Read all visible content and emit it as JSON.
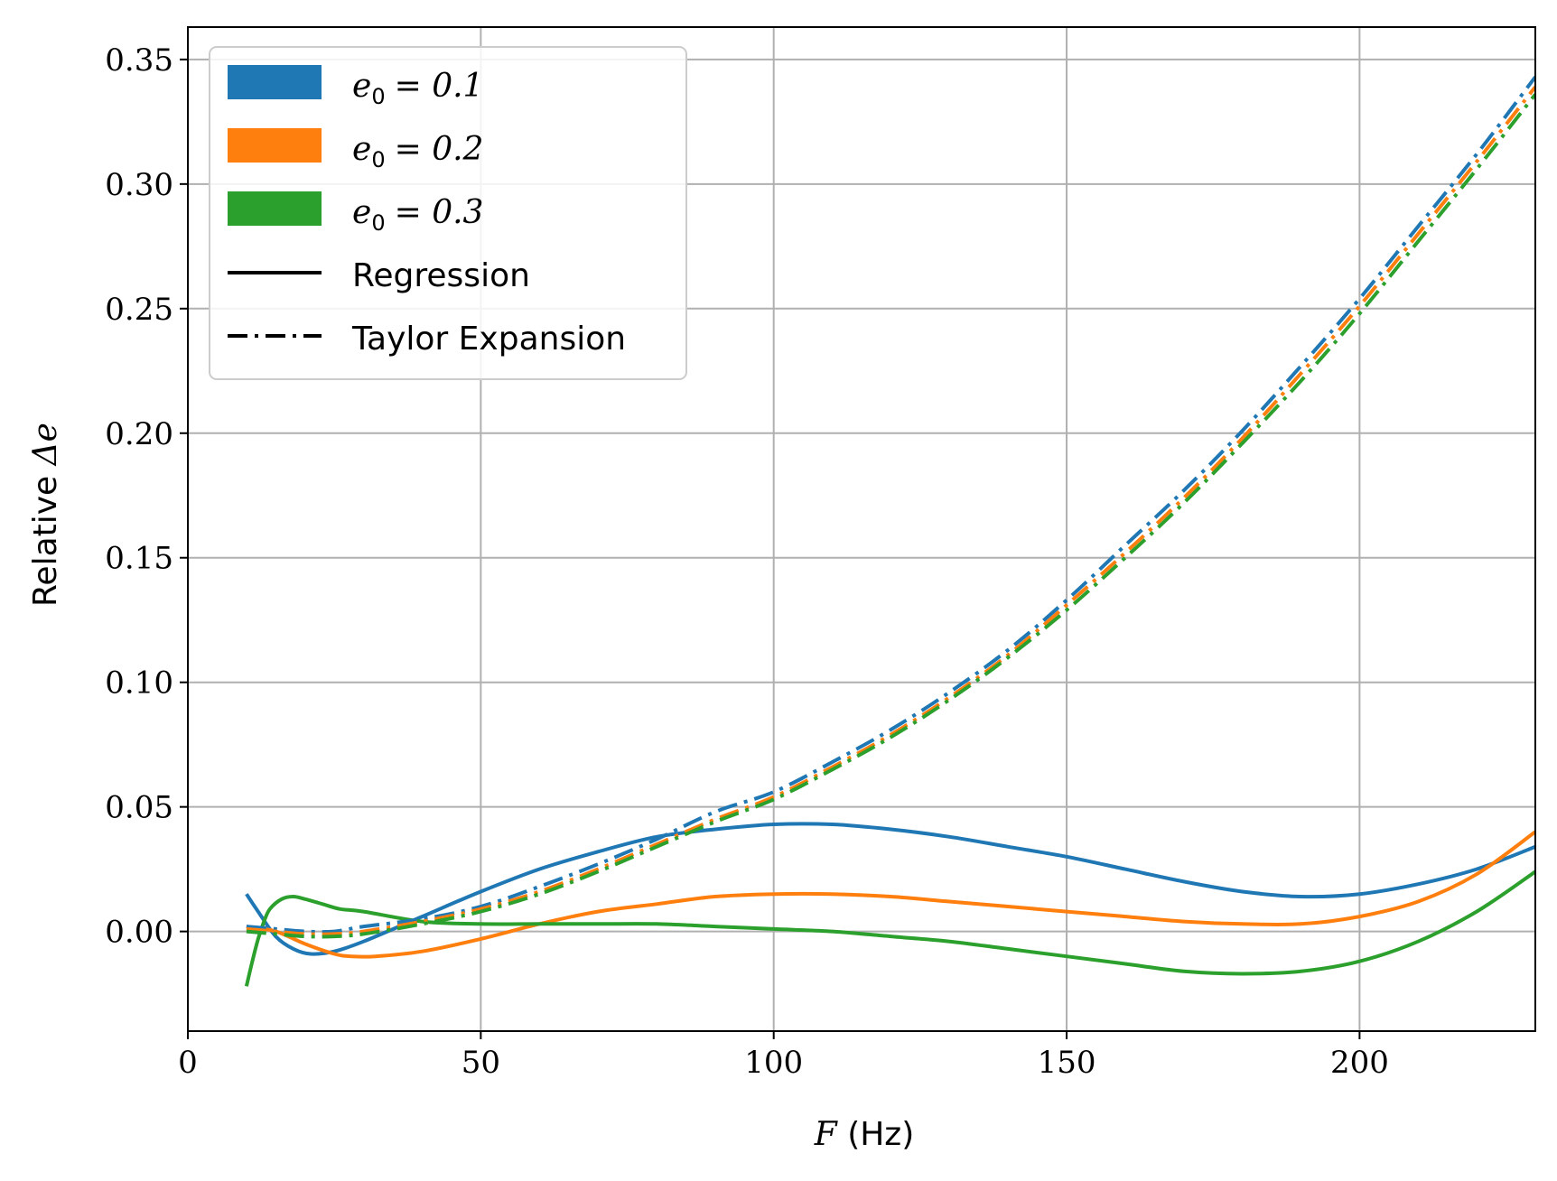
{
  "chart_data": {
    "type": "line",
    "title": "",
    "xlabel": {
      "var": "F",
      "unit": "(Hz)"
    },
    "ylabel": {
      "text": "Relative",
      "var": "Δe"
    },
    "xlim": [
      0,
      230
    ],
    "ylim": [
      -0.04,
      0.363
    ],
    "xticks": [
      0,
      50,
      100,
      150,
      200
    ],
    "xtick_labels": [
      "0",
      "50",
      "100",
      "150",
      "200"
    ],
    "yticks": [
      0.0,
      0.05,
      0.1,
      0.15,
      0.2,
      0.25,
      0.3,
      0.35
    ],
    "ytick_labels": [
      "0.00",
      "0.05",
      "0.10",
      "0.15",
      "0.20",
      "0.25",
      "0.30",
      "0.35"
    ],
    "grid": true,
    "legend_position": "upper-left",
    "legend": {
      "colors": [
        {
          "var": "e",
          "sub": "0",
          "eq": "= 0.1",
          "color": "#1f77b4"
        },
        {
          "var": "e",
          "sub": "0",
          "eq": "= 0.2",
          "color": "#ff7f0e"
        },
        {
          "var": "e",
          "sub": "0",
          "eq": "= 0.3",
          "color": "#2ca02c"
        }
      ],
      "styles": [
        {
          "label": "Regression",
          "dash": "solid"
        },
        {
          "label": "Taylor Expansion",
          "dash": "dashdot"
        }
      ]
    },
    "series": [
      {
        "e0": 0.1,
        "method": "Regression",
        "color": "#1f77b4",
        "dash": "solid",
        "x": [
          10,
          12,
          15,
          18,
          21,
          25,
          30,
          40,
          50,
          60,
          70,
          80,
          90,
          100,
          110,
          120,
          130,
          140,
          150,
          160,
          170,
          180,
          190,
          200,
          210,
          220,
          230
        ],
        "y": [
          0.015,
          0.008,
          -0.002,
          -0.007,
          -0.009,
          -0.008,
          -0.004,
          0.006,
          0.016,
          0.025,
          0.032,
          0.038,
          0.041,
          0.043,
          0.043,
          0.041,
          0.038,
          0.034,
          0.03,
          0.025,
          0.02,
          0.016,
          0.014,
          0.015,
          0.019,
          0.025,
          0.034
        ]
      },
      {
        "e0": 0.2,
        "method": "Regression",
        "color": "#ff7f0e",
        "dash": "solid",
        "x": [
          10,
          15,
          20,
          25,
          28,
          32,
          40,
          50,
          60,
          70,
          80,
          90,
          100,
          110,
          120,
          130,
          140,
          150,
          160,
          170,
          180,
          190,
          200,
          210,
          220,
          230
        ],
        "y": [
          0.002,
          0.0,
          -0.005,
          -0.009,
          -0.01,
          -0.01,
          -0.008,
          -0.003,
          0.003,
          0.008,
          0.011,
          0.014,
          0.015,
          0.015,
          0.014,
          0.012,
          0.01,
          0.008,
          0.006,
          0.004,
          0.003,
          0.003,
          0.006,
          0.012,
          0.023,
          0.04
        ]
      },
      {
        "e0": 0.3,
        "method": "Regression",
        "color": "#2ca02c",
        "dash": "solid",
        "x": [
          10,
          11,
          12,
          13,
          14,
          16,
          18,
          20,
          23,
          26,
          30,
          40,
          50,
          60,
          70,
          80,
          90,
          100,
          110,
          120,
          130,
          140,
          150,
          160,
          170,
          180,
          190,
          200,
          210,
          220,
          230
        ],
        "y": [
          -0.022,
          -0.012,
          -0.003,
          0.004,
          0.009,
          0.013,
          0.014,
          0.013,
          0.011,
          0.009,
          0.008,
          0.004,
          0.003,
          0.003,
          0.003,
          0.003,
          0.002,
          0.001,
          0.0,
          -0.002,
          -0.004,
          -0.007,
          -0.01,
          -0.013,
          -0.016,
          -0.017,
          -0.016,
          -0.012,
          -0.004,
          0.008,
          0.024
        ]
      },
      {
        "e0": 0.1,
        "method": "Taylor Expansion",
        "color": "#1f77b4",
        "dash": "dashdot",
        "x": [
          10,
          15,
          20,
          25,
          30,
          40,
          50,
          60,
          70,
          80,
          90,
          100,
          110,
          120,
          130,
          140,
          150,
          160,
          170,
          180,
          190,
          200,
          210,
          220,
          230
        ],
        "y": [
          0.002,
          0.001,
          0.0,
          0.0,
          0.002,
          0.005,
          0.01,
          0.018,
          0.027,
          0.037,
          0.048,
          0.056,
          0.068,
          0.081,
          0.096,
          0.113,
          0.133,
          0.155,
          0.177,
          0.201,
          0.227,
          0.254,
          0.283,
          0.312,
          0.343
        ]
      },
      {
        "e0": 0.2,
        "method": "Taylor Expansion",
        "color": "#ff7f0e",
        "dash": "dashdot",
        "x": [
          10,
          15,
          20,
          25,
          30,
          40,
          50,
          60,
          70,
          80,
          90,
          100,
          110,
          120,
          130,
          140,
          150,
          160,
          170,
          180,
          190,
          200,
          210,
          220,
          230
        ],
        "y": [
          0.001,
          0.0,
          -0.001,
          -0.001,
          0.0,
          0.004,
          0.009,
          0.016,
          0.025,
          0.035,
          0.045,
          0.054,
          0.066,
          0.079,
          0.094,
          0.111,
          0.131,
          0.152,
          0.174,
          0.198,
          0.224,
          0.251,
          0.28,
          0.309,
          0.339
        ]
      },
      {
        "e0": 0.3,
        "method": "Taylor Expansion",
        "color": "#2ca02c",
        "dash": "dashdot",
        "x": [
          10,
          15,
          20,
          25,
          30,
          40,
          50,
          60,
          70,
          80,
          90,
          100,
          110,
          120,
          130,
          140,
          150,
          160,
          170,
          180,
          190,
          200,
          210,
          220,
          230
        ],
        "y": [
          0.0,
          -0.001,
          -0.002,
          -0.002,
          -0.001,
          0.003,
          0.008,
          0.015,
          0.024,
          0.034,
          0.044,
          0.053,
          0.065,
          0.078,
          0.093,
          0.11,
          0.129,
          0.15,
          0.172,
          0.196,
          0.221,
          0.248,
          0.277,
          0.306,
          0.336
        ]
      }
    ]
  }
}
